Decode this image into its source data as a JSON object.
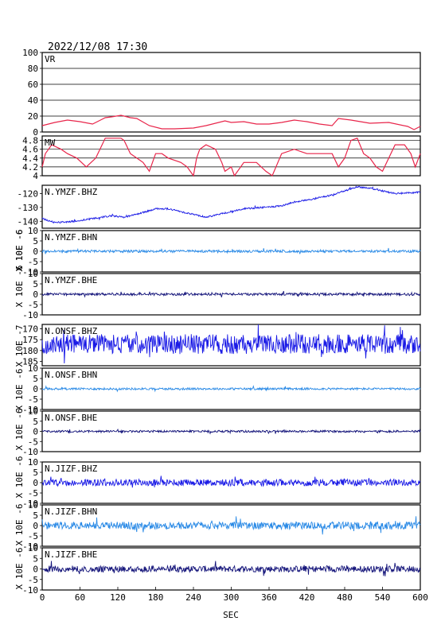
{
  "header": {
    "timestamp": "2022/12/08 17:30"
  },
  "x_axis": {
    "label": "SEC",
    "min": 0,
    "max": 600,
    "ticks": [
      0,
      60,
      120,
      180,
      240,
      300,
      360,
      420,
      480,
      540,
      600
    ]
  },
  "unit_labels": {
    "ymzf_bhz": "X 10E -6",
    "ymzf_bhn": "X 10E -6",
    "ymzf_bhe": "X 10E -6",
    "onsf_bhz": "X 10E -7",
    "onsf_bhn": "X 10E -6",
    "onsf_bhe": "X 10E -6",
    "jizf_bhz": "X 10E -6",
    "jizf_bhn": "X 10E -6",
    "jizf_bhe": "X 10E -6"
  },
  "chart_data": [
    {
      "id": "vr",
      "type": "line",
      "title": "VR",
      "ylim": [
        0,
        100
      ],
      "yticks": [
        0,
        20,
        40,
        60,
        80,
        100
      ],
      "grid": true,
      "color": "#e8254a",
      "x": [
        0,
        20,
        40,
        60,
        80,
        100,
        110,
        125,
        140,
        150,
        170,
        190,
        210,
        240,
        260,
        290,
        300,
        320,
        340,
        360,
        380,
        400,
        420,
        440,
        460,
        470,
        490,
        520,
        550,
        580,
        590,
        600
      ],
      "values": [
        8,
        12,
        15,
        13,
        10,
        18,
        19,
        21,
        18,
        17,
        8,
        4,
        4,
        5,
        8,
        14,
        12,
        13,
        10,
        10,
        12,
        15,
        13,
        10,
        8,
        17,
        15,
        11,
        12,
        7,
        3,
        7
      ]
    },
    {
      "id": "mw",
      "type": "line",
      "title": "MW",
      "ylim": [
        4.0,
        4.9
      ],
      "yticks": [
        4.0,
        4.2,
        4.4,
        4.6,
        4.8
      ],
      "grid": true,
      "color": "#e8254a",
      "x": [
        0,
        5,
        15,
        30,
        40,
        55,
        70,
        85,
        100,
        125,
        130,
        140,
        150,
        160,
        170,
        180,
        190,
        200,
        210,
        220,
        230,
        240,
        245,
        250,
        260,
        275,
        285,
        290,
        300,
        305,
        320,
        340,
        355,
        365,
        380,
        400,
        420,
        440,
        460,
        470,
        480,
        490,
        500,
        510,
        520,
        530,
        540,
        560,
        575,
        585,
        592,
        600
      ],
      "values": [
        4.2,
        4.5,
        4.7,
        4.6,
        4.5,
        4.4,
        4.2,
        4.4,
        4.85,
        4.85,
        4.8,
        4.5,
        4.4,
        4.3,
        4.1,
        4.5,
        4.5,
        4.4,
        4.35,
        4.3,
        4.2,
        4.0,
        4.4,
        4.6,
        4.7,
        4.6,
        4.3,
        4.1,
        4.2,
        4.0,
        4.3,
        4.3,
        4.1,
        4.0,
        4.5,
        4.6,
        4.5,
        4.5,
        4.5,
        4.2,
        4.4,
        4.8,
        4.85,
        4.5,
        4.4,
        4.2,
        4.1,
        4.7,
        4.7,
        4.5,
        4.2,
        4.5
      ]
    },
    {
      "id": "ymzf_bhz",
      "type": "line",
      "title": "N.YMZF.BHZ",
      "ylim": [
        -145,
        -114
      ],
      "yticks": [
        -140,
        -130,
        -120
      ],
      "tick_labels": [
        "-140",
        "-130",
        "-120"
      ],
      "color": "#1a1ae6",
      "noise": 0.6,
      "x": [
        0,
        20,
        50,
        80,
        110,
        130,
        150,
        180,
        200,
        230,
        260,
        290,
        320,
        350,
        380,
        400,
        430,
        460,
        480,
        500,
        530,
        560,
        600
      ],
      "values": [
        -138,
        -141,
        -140,
        -138,
        -136,
        -137,
        -135,
        -131,
        -131,
        -134,
        -137,
        -134,
        -131,
        -130,
        -129,
        -126,
        -124,
        -121,
        -118,
        -115,
        -117,
        -120,
        -119
      ]
    },
    {
      "id": "ymzf_bhn",
      "type": "line",
      "title": "N.YMZF.BHN",
      "ylim": [
        -10,
        10
      ],
      "yticks": [
        -10,
        -5,
        0,
        5,
        10
      ],
      "color": "#2a8ae6",
      "noise": 0.6,
      "x": [
        0,
        600
      ],
      "values": [
        0,
        0
      ]
    },
    {
      "id": "ymzf_bhe",
      "type": "line",
      "title": "N.YMZF.BHE",
      "ylim": [
        -10,
        10
      ],
      "yticks": [
        -10,
        -5,
        0,
        5,
        10
      ],
      "color": "#14147a",
      "noise": 0.6,
      "x": [
        0,
        600
      ],
      "values": [
        0,
        0
      ]
    },
    {
      "id": "onsf_bhz",
      "type": "line",
      "title": "N.ONSF.BHZ",
      "ylim": [
        -187,
        -168
      ],
      "yticks": [
        -185,
        -180,
        -175,
        -170
      ],
      "tick_labels": [
        "185",
        "180",
        "175",
        "170"
      ],
      "color": "#1a1ae6",
      "noise": 4.5,
      "x": [
        0,
        600
      ],
      "values": [
        -177,
        -177
      ]
    },
    {
      "id": "onsf_bhn",
      "type": "line",
      "title": "N.ONSF.BHN",
      "ylim": [
        -10,
        10
      ],
      "yticks": [
        -10,
        -5,
        0,
        5,
        10
      ],
      "color": "#2a8ae6",
      "noise": 0.5,
      "x": [
        0,
        600
      ],
      "values": [
        0,
        0
      ]
    },
    {
      "id": "onsf_bhe",
      "type": "line",
      "title": "N.ONSF.BHE",
      "ylim": [
        -10,
        10
      ],
      "yticks": [
        -10,
        -5,
        0,
        5,
        10
      ],
      "color": "#14147a",
      "noise": 0.5,
      "x": [
        0,
        600
      ],
      "values": [
        0,
        0
      ]
    },
    {
      "id": "jizf_bhz",
      "type": "line",
      "title": "N.JIZF.BHZ",
      "ylim": [
        -10,
        10
      ],
      "yticks": [
        -10,
        -5,
        0,
        5,
        10
      ],
      "color": "#1a1ae6",
      "noise": 1.6,
      "x": [
        0,
        600
      ],
      "values": [
        0,
        0
      ]
    },
    {
      "id": "jizf_bhn",
      "type": "line",
      "title": "N.JIZF.BHN",
      "ylim": [
        -10,
        10
      ],
      "yticks": [
        -10,
        -5,
        0,
        5,
        10
      ],
      "color": "#2a8ae6",
      "noise": 1.8,
      "x": [
        0,
        600
      ],
      "values": [
        0,
        0
      ]
    },
    {
      "id": "jizf_bhe",
      "type": "line",
      "title": "N.JIZF.BHE",
      "ylim": [
        -10,
        10
      ],
      "yticks": [
        -10,
        -5,
        0,
        5,
        10
      ],
      "color": "#14147a",
      "noise": 1.5,
      "x": [
        0,
        600
      ],
      "values": [
        0,
        0
      ]
    }
  ]
}
